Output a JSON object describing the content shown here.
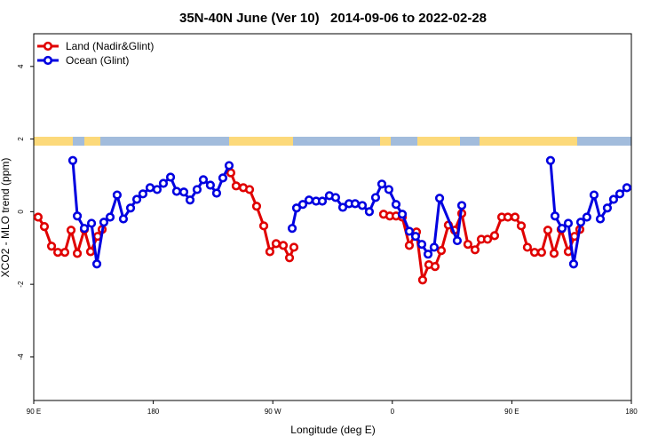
{
  "chart_data": {
    "type": "line",
    "title": "35N-40N June (Ver 10)   2014-09-06 to 2022-02-28",
    "x_label": "Longitude (deg E)",
    "y_label": "XCO2 - MLO trend (ppm)",
    "xlim": [
      90,
      540
    ],
    "ylim": [
      -5.2,
      4.9
    ],
    "xticks": [
      {
        "value": 90,
        "label": "90 E"
      },
      180,
      {
        "value": 270,
        "label": "90 W"
      },
      {
        "value": 360,
        "label": "0"
      },
      {
        "value": 450,
        "label": "90 E"
      },
      {
        "value": 540,
        "label": "180"
      }
    ],
    "yticks": [
      -4,
      -2,
      0,
      2,
      4
    ],
    "legend": "top-left",
    "series": [
      {
        "name": "Land (Nadir&Glint)",
        "color": "#e00000",
        "x": [
          93.3,
          98.0,
          103.4,
          108.1,
          113.4,
          118.1,
          122.8,
          128.1,
          132.8,
          138.1,
          141.5,
          null,
          238.4,
          242.4,
          247.8,
          252.5,
          257.8,
          263.2,
          267.8,
          272.5,
          277.9,
          282.6,
          285.9,
          null,
          353.4,
          358.1,
          362.8,
          367.5,
          372.8,
          378.2,
          382.8,
          387.5,
          392.2,
          396.9,
          402.2,
          406.9,
          412.3,
          416.9,
          422.3,
          427.0,
          431.7,
          437.0,
          442.4,
          447.0,
          452.4,
          457.1,
          461.7,
          467.1,
          472.4,
          477.1,
          481.8,
          487.1,
          492.5,
          497.2,
          501.2
        ],
        "values": [
          -0.15,
          -0.41,
          -0.95,
          -1.12,
          -1.12,
          -0.51,
          -1.15,
          -0.49,
          -1.1,
          -0.68,
          -0.49,
          null,
          1.07,
          0.71,
          0.66,
          0.61,
          0.15,
          -0.39,
          -1.1,
          -0.88,
          -0.93,
          -1.27,
          -0.98,
          null,
          -0.07,
          -0.12,
          -0.12,
          -0.15,
          -0.93,
          -0.56,
          -1.88,
          -1.46,
          -1.51,
          -1.07,
          -0.37,
          -0.51,
          -0.05,
          -0.9,
          -1.05,
          -0.76,
          -0.76,
          -0.66,
          -0.15,
          -0.15,
          -0.15,
          -0.39,
          -0.98,
          -1.12,
          -1.12,
          -0.51,
          -1.15,
          -0.49,
          -1.1,
          -0.68,
          -0.49
        ]
      },
      {
        "name": "Ocean (Glint)",
        "color": "#0000e0",
        "x": [
          119.4,
          122.8,
          128.1,
          133.5,
          137.5,
          142.8,
          147.5,
          152.8,
          157.5,
          162.9,
          167.6,
          172.2,
          177.6,
          182.9,
          187.6,
          193.0,
          197.6,
          203.0,
          207.7,
          213.0,
          217.7,
          223.0,
          227.7,
          232.4,
          237.1,
          null,
          284.6,
          287.9,
          292.6,
          297.3,
          302.6,
          307.3,
          312.6,
          317.3,
          322.7,
          327.4,
          332.0,
          337.4,
          342.7,
          347.4,
          352.1,
          357.4,
          362.8,
          367.5,
          372.8,
          377.5,
          382.2,
          386.9,
          391.5,
          395.6,
          408.9,
          412.3,
          null,
          479.1,
          482.5,
          487.8,
          492.5,
          496.5,
          501.9,
          506.5,
          511.9,
          516.6,
          521.9,
          526.6,
          531.3,
          536.6
        ],
        "values": [
          1.41,
          -0.12,
          -0.46,
          -0.32,
          -1.44,
          -0.29,
          -0.15,
          0.46,
          -0.2,
          0.1,
          0.34,
          0.49,
          0.66,
          0.61,
          0.78,
          0.95,
          0.56,
          0.54,
          0.32,
          0.61,
          0.88,
          0.73,
          0.51,
          0.93,
          1.27,
          null,
          -0.46,
          0.1,
          0.2,
          0.32,
          0.29,
          0.29,
          0.44,
          0.39,
          0.12,
          0.22,
          0.22,
          0.17,
          0.0,
          0.39,
          0.76,
          0.61,
          0.2,
          -0.07,
          -0.54,
          -0.68,
          -0.9,
          -1.17,
          -0.98,
          0.37,
          -0.8,
          0.17,
          null,
          1.41,
          -0.12,
          -0.46,
          -0.32,
          -1.44,
          -0.29,
          -0.15,
          0.46,
          -0.2,
          0.1,
          0.34,
          0.49,
          0.66
        ]
      }
    ]
  }
}
